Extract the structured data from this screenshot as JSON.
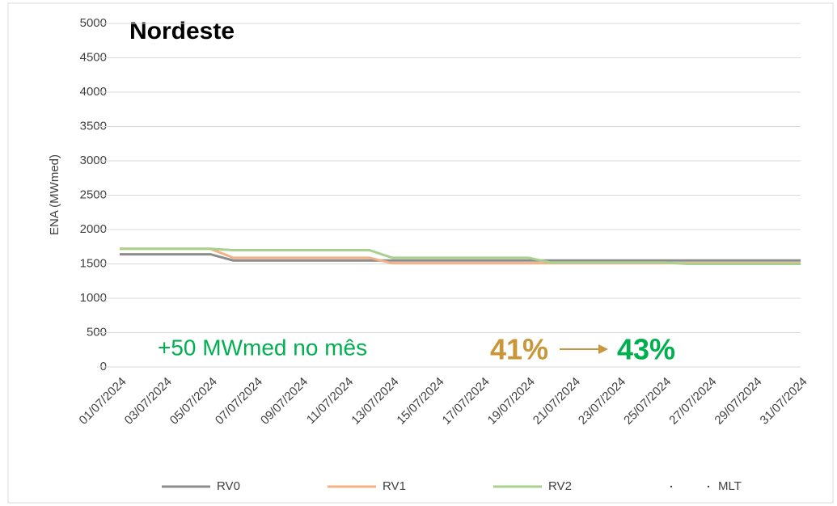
{
  "chart_data": {
    "type": "line",
    "title": "Nordeste",
    "y_label": "ENA (MWmed)",
    "categories": [
      "01/07/2024",
      null,
      "03/07/2024",
      null,
      "05/07/2024",
      null,
      "07/07/2024",
      null,
      "09/07/2024",
      null,
      "11/07/2024",
      null,
      "13/07/2024",
      null,
      "15/07/2024",
      null,
      "17/07/2024",
      null,
      "19/07/2024",
      null,
      "21/07/2024",
      null,
      "23/07/2024",
      null,
      "25/07/2024",
      null,
      "27/07/2024",
      null,
      "29/07/2024",
      null,
      "31/07/2024"
    ],
    "series": [
      {
        "name": "RV0",
        "color": "#8c8c8c",
        "values": [
          1640,
          1640,
          1640,
          1640,
          1640,
          1550,
          1550,
          1550,
          1550,
          1550,
          1550,
          1550,
          1550,
          1550,
          1550,
          1550,
          1550,
          1550,
          1550,
          1550,
          1550,
          1550,
          1550,
          1550,
          1550,
          1550,
          1550,
          1550,
          1550,
          1550,
          1550
        ]
      },
      {
        "name": "RV1",
        "color": "#f4b183",
        "values": [
          1720,
          1720,
          1720,
          1720,
          1720,
          1590,
          1590,
          1590,
          1590,
          1590,
          1590,
          1590,
          1510,
          1510,
          1510,
          1510,
          1510,
          1510,
          1510,
          1510,
          1510,
          1510,
          1510,
          1510,
          1510,
          1510,
          1510,
          1510,
          1510,
          1510,
          1510
        ]
      },
      {
        "name": "RV2",
        "color": "#a9d18e",
        "values": [
          1720,
          1720,
          1720,
          1720,
          1720,
          1700,
          1700,
          1700,
          1700,
          1700,
          1700,
          1700,
          1590,
          1590,
          1590,
          1590,
          1590,
          1590,
          1590,
          1520,
          1520,
          1520,
          1520,
          1520,
          1520,
          1500,
          1500,
          1500,
          1500,
          1500,
          1500
        ]
      },
      {
        "name": "MLT",
        "color": "#000000",
        "values": [
          null,
          null,
          null,
          null,
          null,
          null,
          null,
          null,
          null,
          null,
          null,
          null,
          null,
          null,
          null,
          null,
          null,
          null,
          null,
          null,
          null,
          null,
          null,
          null,
          null,
          null,
          null,
          null,
          null,
          null,
          null
        ]
      }
    ],
    "ylim": [
      0,
      5000
    ],
    "yticks": [
      0,
      500,
      1000,
      1500,
      2000,
      2500,
      3000,
      3500,
      4000,
      4500,
      5000
    ],
    "grid": true,
    "legend": "bottom",
    "annotations": [
      {
        "text": "+50 MWmed no mês",
        "color": "#00b050"
      },
      {
        "text": "41%",
        "color": "#c9963a"
      },
      {
        "text": "43%",
        "color": "#00b050"
      }
    ]
  }
}
